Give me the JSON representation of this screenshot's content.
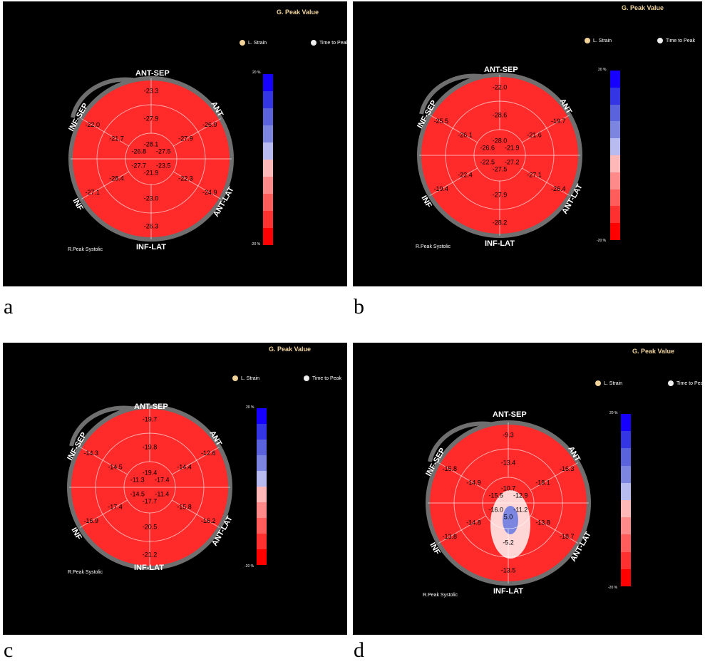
{
  "header_title": "G. Peak Value",
  "option_strain": "L. Strain",
  "option_time": "Time to Peak",
  "peak_label": "R.Peak Systolic",
  "scale_top": "20 %",
  "scale_bottom": "-20 %",
  "wall_labels": {
    "ant_sep": "ANT-SEP",
    "ant": "ANT",
    "ant_lat": "ANT-LAT",
    "inf_lat": "INF-LAT",
    "inf": "INF",
    "inf_sep": "INF-SEP"
  },
  "colors": {
    "panel_background": "#000000",
    "bullseye_red": "#ff2a2a",
    "ring_gray": "#6f6f6f",
    "label_gold": "#f1d39a",
    "scale": [
      "#1600ff",
      "#3436e6",
      "#5a63dc",
      "#7c86e0",
      "#b7bbf0",
      "#ffb8b8",
      "#ff8a8a",
      "#ff5c5c",
      "#ff3030",
      "#ff0000"
    ]
  },
  "panels": [
    {
      "letter": "a",
      "basal": [
        "-23.3",
        "-26.9",
        "-24.9",
        "-26.3",
        "-27.1",
        "-22.0"
      ],
      "mid": [
        "-27.9",
        "-27.9",
        "-22.3",
        "-23.0",
        "-28.4",
        "-21.7"
      ],
      "apical": [
        "-28.1",
        "-27.5",
        "-23.5",
        "-21.9",
        "-27.7",
        "-26.8"
      ],
      "apex": ""
    },
    {
      "letter": "b",
      "basal": [
        "-22.0",
        "-19.7",
        "-26.4",
        "-28.2",
        "-19.4",
        "-25.5"
      ],
      "mid": [
        "-28.6",
        "-21.6",
        "-27.1",
        "-27.9",
        "-22.4",
        "-26.1"
      ],
      "apical": [
        "-28.0",
        "-21.9",
        "-27.2",
        "-27.5",
        "-22.5",
        "-26.6"
      ],
      "apex": ""
    },
    {
      "letter": "c",
      "basal": [
        "-19.7",
        "-12.6",
        "-16.2",
        "-21.2",
        "-16.9",
        "-14.3"
      ],
      "mid": [
        "-19.8",
        "-14.4",
        "-15.8",
        "-20.5",
        "-17.4",
        "-14.5"
      ],
      "apical": [
        "-19.4",
        "-17.4",
        "-11.4",
        "-17.7",
        "-14.5",
        "-11.3"
      ],
      "apex": ""
    },
    {
      "letter": "d",
      "basal": [
        "-9.3",
        "-16.3",
        "-18.7",
        "-13.5",
        "-13.8",
        "-15.8"
      ],
      "mid": [
        "-13.4",
        "-18.1",
        "-13.8",
        "-5.2",
        "-14.8",
        "-14.9"
      ],
      "apical": [
        "-10.7",
        "-12.9",
        "-11.2",
        "5.0",
        "-16.0",
        "-15.5"
      ],
      "apex": ""
    }
  ]
}
